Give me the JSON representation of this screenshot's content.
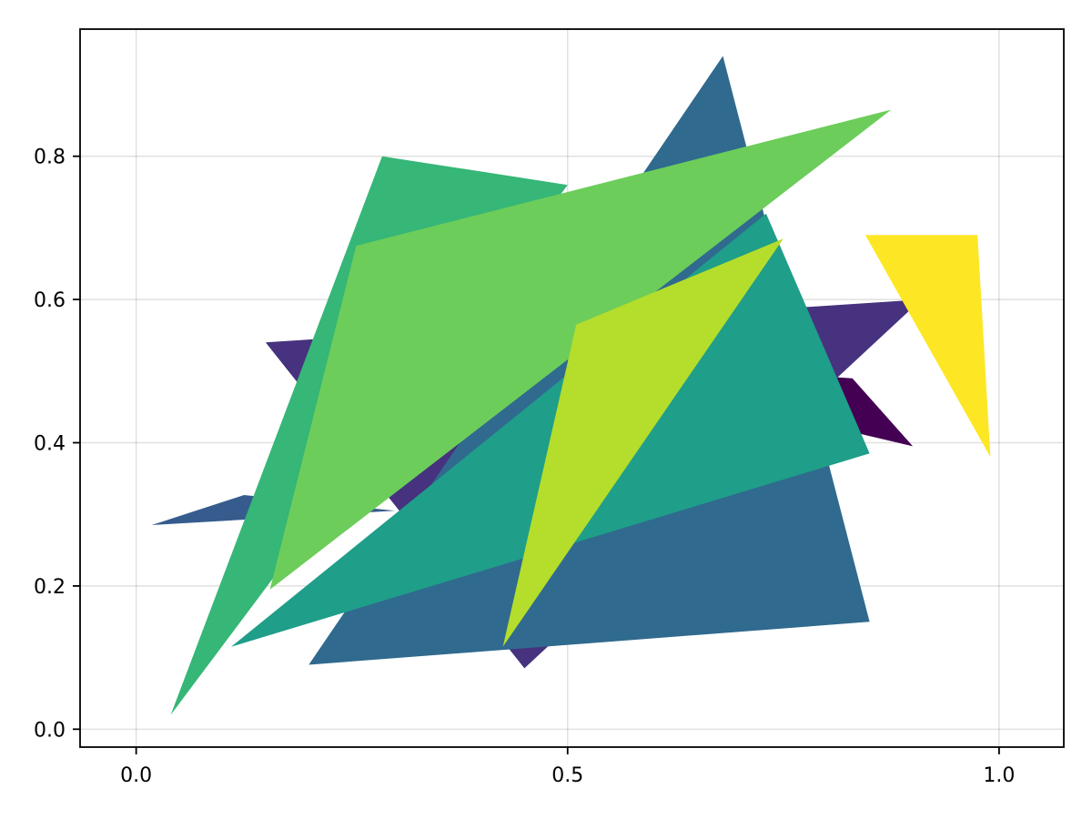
{
  "chart_data": {
    "type": "polygon",
    "title": "",
    "xlabel": "",
    "ylabel": "",
    "xlim": [
      -0.065,
      1.075
    ],
    "ylim": [
      -0.025,
      0.9775
    ],
    "grid": true,
    "legend": "none",
    "x_ticks": [
      {
        "value": 0.0,
        "label": "0.0"
      },
      {
        "value": 0.5,
        "label": "0.5"
      },
      {
        "value": 1.0,
        "label": "1.0"
      }
    ],
    "y_ticks": [
      {
        "value": 0.0,
        "label": "0.0"
      },
      {
        "value": 0.2,
        "label": "0.2"
      },
      {
        "value": 0.4,
        "label": "0.4"
      },
      {
        "value": 0.6,
        "label": "0.6"
      },
      {
        "value": 0.8,
        "label": "0.8"
      }
    ],
    "series": [
      {
        "color": "#440154",
        "points": [
          [
            0.46,
            0.52
          ],
          [
            0.83,
            0.49
          ],
          [
            0.9,
            0.395
          ]
        ]
      },
      {
        "color": "#46327e",
        "points": [
          [
            0.15,
            0.54
          ],
          [
            0.45,
            0.085
          ],
          [
            0.91,
            0.6
          ]
        ]
      },
      {
        "color": "#365c8d",
        "points": [
          [
            0.018,
            0.285
          ],
          [
            0.125,
            0.327
          ],
          [
            0.3,
            0.305
          ]
        ]
      },
      {
        "color": "#306a8e",
        "points": [
          [
            0.2,
            0.09
          ],
          [
            0.68,
            0.94
          ],
          [
            0.85,
            0.15
          ]
        ]
      },
      {
        "color": "#36b677",
        "points": [
          [
            0.04,
            0.02
          ],
          [
            0.285,
            0.8
          ],
          [
            0.5,
            0.76
          ]
        ]
      },
      {
        "color": "#1f9e89",
        "points": [
          [
            0.11,
            0.115
          ],
          [
            0.73,
            0.72
          ],
          [
            0.85,
            0.385
          ]
        ]
      },
      {
        "color": "#6ccd5a",
        "points": [
          [
            0.155,
            0.195
          ],
          [
            0.255,
            0.675
          ],
          [
            0.875,
            0.865
          ]
        ]
      },
      {
        "color": "#b4dd2c",
        "points": [
          [
            0.425,
            0.115
          ],
          [
            0.51,
            0.565
          ],
          [
            0.75,
            0.685
          ]
        ]
      },
      {
        "color": "#fde725",
        "points": [
          [
            0.845,
            0.69
          ],
          [
            0.975,
            0.69
          ],
          [
            0.99,
            0.38
          ]
        ]
      }
    ]
  }
}
